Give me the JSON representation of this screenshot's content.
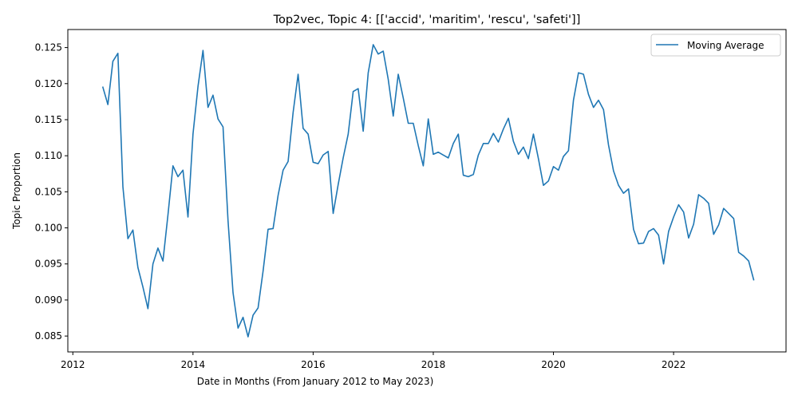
{
  "chart_data": {
    "type": "line",
    "title": "Top2vec, Topic 4: [['accid', 'maritim', 'rescu', 'safeti']]",
    "xlabel": "Date in Months (From January 2012 to May 2023)",
    "ylabel": "Topic Proportion",
    "xlim": [
      "2011-12-01",
      "2023-11-15"
    ],
    "ylim": [
      0.0828,
      0.1275
    ],
    "x_ticks": [
      "2012",
      "2014",
      "2016",
      "2018",
      "2020",
      "2022"
    ],
    "y_ticks": [
      "0.085",
      "0.090",
      "0.095",
      "0.100",
      "0.105",
      "0.110",
      "0.115",
      "0.120",
      "0.125"
    ],
    "grid": false,
    "legend_position": "top-right",
    "series": [
      {
        "name": "Moving Average",
        "color": "#1f77b4",
        "points": [
          [
            "2012-07",
            0.1195
          ],
          [
            "2012-08",
            0.1171
          ],
          [
            "2012-09",
            0.1231
          ],
          [
            "2012-10",
            0.1242
          ],
          [
            "2012-11",
            0.1057
          ],
          [
            "2012-12",
            0.0985
          ],
          [
            "2013-01",
            0.0997
          ],
          [
            "2013-02",
            0.0945
          ],
          [
            "2013-03",
            0.0918
          ],
          [
            "2013-04",
            0.0888
          ],
          [
            "2013-05",
            0.095
          ],
          [
            "2013-06",
            0.0972
          ],
          [
            "2013-07",
            0.0954
          ],
          [
            "2013-08",
            0.1018
          ],
          [
            "2013-09",
            0.1086
          ],
          [
            "2013-10",
            0.1071
          ],
          [
            "2013-11",
            0.108
          ],
          [
            "2013-12",
            0.1015
          ],
          [
            "2014-01",
            0.113
          ],
          [
            "2014-02",
            0.1196
          ],
          [
            "2014-03",
            0.1246
          ],
          [
            "2014-04",
            0.1167
          ],
          [
            "2014-05",
            0.1184
          ],
          [
            "2014-06",
            0.1151
          ],
          [
            "2014-07",
            0.114
          ],
          [
            "2014-08",
            0.101
          ],
          [
            "2014-09",
            0.091
          ],
          [
            "2014-10",
            0.0861
          ],
          [
            "2014-11",
            0.0876
          ],
          [
            "2014-12",
            0.0849
          ],
          [
            "2015-01",
            0.0879
          ],
          [
            "2015-02",
            0.0889
          ],
          [
            "2015-03",
            0.094
          ],
          [
            "2015-04",
            0.0998
          ],
          [
            "2015-05",
            0.0999
          ],
          [
            "2015-06",
            0.1045
          ],
          [
            "2015-07",
            0.108
          ],
          [
            "2015-08",
            0.1092
          ],
          [
            "2015-09",
            0.116
          ],
          [
            "2015-10",
            0.1213
          ],
          [
            "2015-11",
            0.1138
          ],
          [
            "2015-12",
            0.113
          ],
          [
            "2016-01",
            0.1091
          ],
          [
            "2016-02",
            0.1089
          ],
          [
            "2016-03",
            0.1101
          ],
          [
            "2016-04",
            0.1106
          ],
          [
            "2016-05",
            0.102
          ],
          [
            "2016-06",
            0.106
          ],
          [
            "2016-07",
            0.1097
          ],
          [
            "2016-08",
            0.113
          ],
          [
            "2016-09",
            0.1189
          ],
          [
            "2016-10",
            0.1193
          ],
          [
            "2016-11",
            0.1134
          ],
          [
            "2016-12",
            0.1215
          ],
          [
            "2017-01",
            0.1254
          ],
          [
            "2017-02",
            0.1241
          ],
          [
            "2017-03",
            0.1245
          ],
          [
            "2017-04",
            0.1206
          ],
          [
            "2017-05",
            0.1155
          ],
          [
            "2017-06",
            0.1213
          ],
          [
            "2017-07",
            0.118
          ],
          [
            "2017-08",
            0.1145
          ],
          [
            "2017-09",
            0.1145
          ],
          [
            "2017-10",
            0.1114
          ],
          [
            "2017-11",
            0.1086
          ],
          [
            "2017-12",
            0.1151
          ],
          [
            "2018-01",
            0.1102
          ],
          [
            "2018-02",
            0.1105
          ],
          [
            "2018-03",
            0.1101
          ],
          [
            "2018-04",
            0.1097
          ],
          [
            "2018-05",
            0.1117
          ],
          [
            "2018-06",
            0.113
          ],
          [
            "2018-07",
            0.1073
          ],
          [
            "2018-08",
            0.1071
          ],
          [
            "2018-09",
            0.1074
          ],
          [
            "2018-10",
            0.1101
          ],
          [
            "2018-11",
            0.1117
          ],
          [
            "2018-12",
            0.1117
          ],
          [
            "2019-01",
            0.1131
          ],
          [
            "2019-02",
            0.1119
          ],
          [
            "2019-03",
            0.1137
          ],
          [
            "2019-04",
            0.1152
          ],
          [
            "2019-05",
            0.112
          ],
          [
            "2019-06",
            0.1102
          ],
          [
            "2019-07",
            0.1112
          ],
          [
            "2019-08",
            0.1096
          ],
          [
            "2019-09",
            0.113
          ],
          [
            "2019-10",
            0.1096
          ],
          [
            "2019-11",
            0.1059
          ],
          [
            "2019-12",
            0.1065
          ],
          [
            "2020-01",
            0.1085
          ],
          [
            "2020-02",
            0.108
          ],
          [
            "2020-03",
            0.1099
          ],
          [
            "2020-04",
            0.1107
          ],
          [
            "2020-05",
            0.1177
          ],
          [
            "2020-06",
            0.1215
          ],
          [
            "2020-07",
            0.1213
          ],
          [
            "2020-08",
            0.1185
          ],
          [
            "2020-09",
            0.1167
          ],
          [
            "2020-10",
            0.1177
          ],
          [
            "2020-11",
            0.1164
          ],
          [
            "2020-12",
            0.1115
          ],
          [
            "2021-01",
            0.1079
          ],
          [
            "2021-02",
            0.1059
          ],
          [
            "2021-03",
            0.1048
          ],
          [
            "2021-04",
            0.1054
          ],
          [
            "2021-05",
            0.0998
          ],
          [
            "2021-06",
            0.0978
          ],
          [
            "2021-07",
            0.0979
          ],
          [
            "2021-08",
            0.0995
          ],
          [
            "2021-09",
            0.0999
          ],
          [
            "2021-10",
            0.099
          ],
          [
            "2021-11",
            0.095
          ],
          [
            "2021-12",
            0.0995
          ],
          [
            "2022-01",
            0.1015
          ],
          [
            "2022-02",
            0.1032
          ],
          [
            "2022-03",
            0.1022
          ],
          [
            "2022-04",
            0.0986
          ],
          [
            "2022-05",
            0.1005
          ],
          [
            "2022-06",
            0.1046
          ],
          [
            "2022-07",
            0.1041
          ],
          [
            "2022-08",
            0.1034
          ],
          [
            "2022-09",
            0.0991
          ],
          [
            "2022-10",
            0.1004
          ],
          [
            "2022-11",
            0.1027
          ],
          [
            "2022-12",
            0.102
          ],
          [
            "2023-01",
            0.1013
          ],
          [
            "2023-02",
            0.0966
          ],
          [
            "2023-03",
            0.0961
          ],
          [
            "2023-04",
            0.0954
          ],
          [
            "2023-05",
            0.0928
          ]
        ]
      }
    ]
  }
}
